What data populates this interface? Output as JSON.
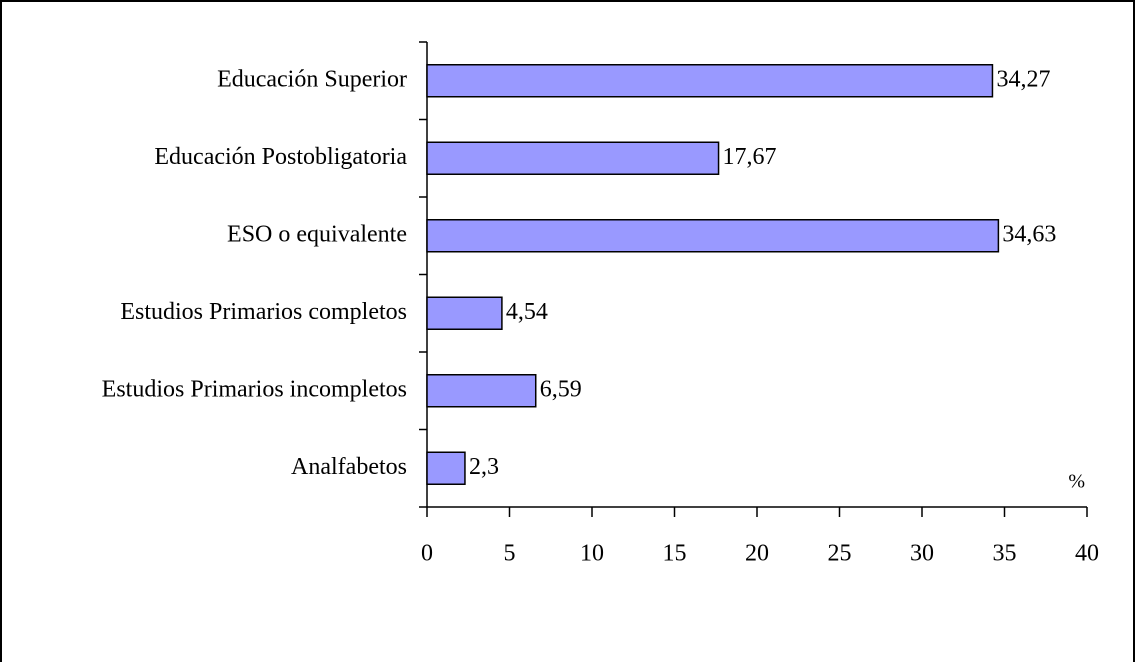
{
  "chart_data": {
    "type": "bar",
    "orientation": "horizontal",
    "categories": [
      "Educación Superior",
      "Educación Postobligatoria",
      "ESO o equivalente",
      "Estudios Primarios completos",
      "Estudios Primarios incompletos",
      "Analfabetos"
    ],
    "values": [
      34.27,
      17.67,
      34.63,
      4.54,
      6.59,
      2.3
    ],
    "value_labels": [
      "34,27",
      "17,67",
      "34,63",
      "4,54",
      "6,59",
      "2,3"
    ],
    "color": "#9999ff",
    "xlabel": "%",
    "xlim": [
      0,
      40
    ],
    "xticks": [
      0,
      5,
      10,
      15,
      20,
      25,
      30,
      35,
      40
    ]
  }
}
